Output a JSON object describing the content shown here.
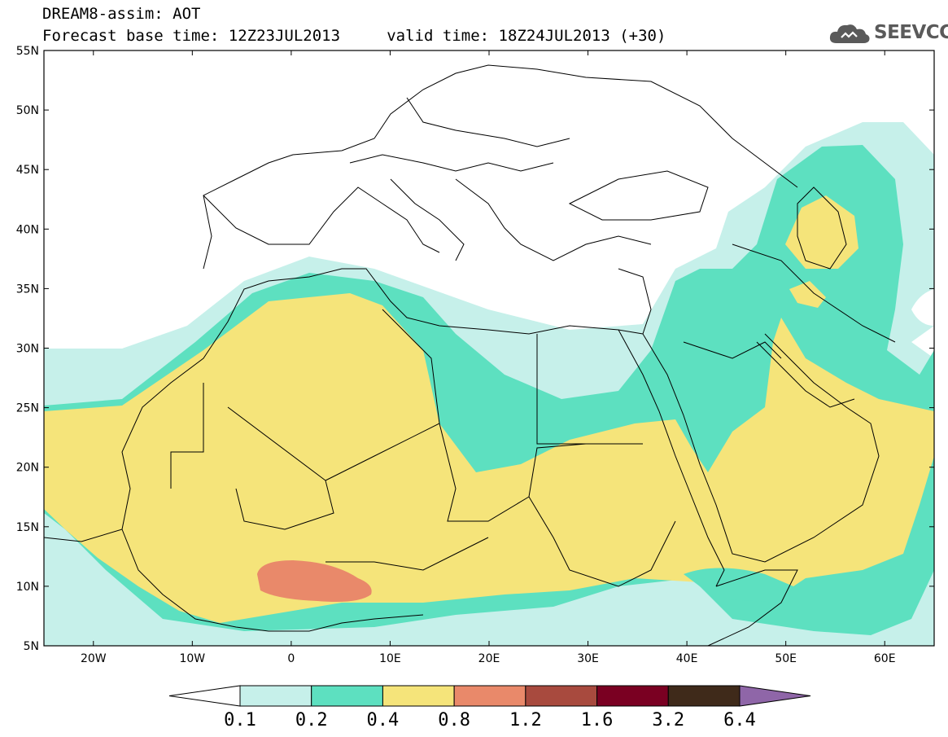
{
  "header": {
    "title_line1": "DREAM8-assim: AOT",
    "title_line2": "Forecast base time: 12Z23JUL2013     valid time: 18Z24JUL2013 (+30)"
  },
  "logo": {
    "text": "SEEVCCC",
    "icon": "cloud-logo-icon"
  },
  "map": {
    "lon_range": [
      -25,
      65
    ],
    "lat_range": [
      5,
      55
    ],
    "lat_labels": [
      "55N",
      "50N",
      "45N",
      "40N",
      "35N",
      "30N",
      "25N",
      "20N",
      "15N",
      "10N",
      "5N"
    ],
    "lon_labels": [
      "20W",
      "10W",
      "0",
      "10E",
      "20E",
      "30E",
      "40E",
      "50E",
      "60E"
    ],
    "field_colors": {
      "0.1-0.2": "#c6f0ea",
      "0.2-0.4": "#5de0c0",
      "0.4-0.8": "#f5e47a",
      "0.8-1.2": "#e9896a"
    }
  },
  "colorbar": {
    "levels": [
      "0.1",
      "0.2",
      "0.4",
      "0.8",
      "1.2",
      "1.6",
      "3.2",
      "6.4"
    ],
    "colors": [
      "#ffffff",
      "#c6f0ea",
      "#5de0c0",
      "#f5e47a",
      "#e9896a",
      "#a84a3e",
      "#7a0022",
      "#3f2a1a",
      "#8f66a8"
    ]
  }
}
